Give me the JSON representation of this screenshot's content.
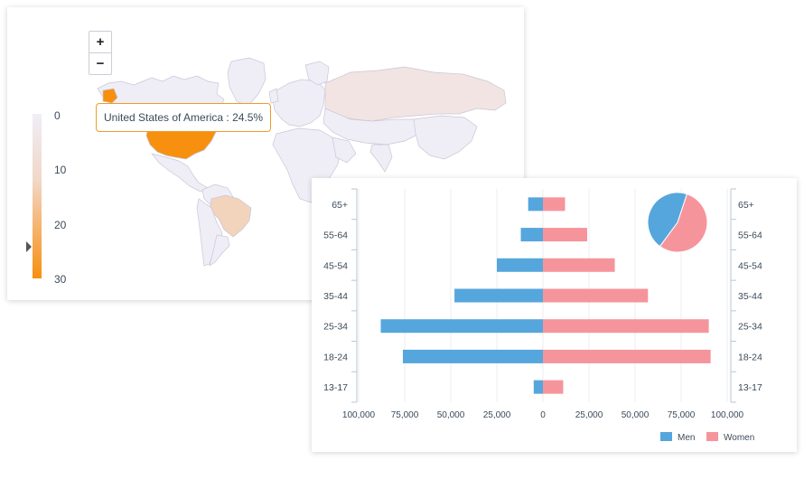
{
  "map": {
    "zoom_in_label": "+",
    "zoom_out_label": "−",
    "legend_ticks": [
      "0",
      "10",
      "20",
      "30"
    ],
    "tooltip": "United States of America : 24.5%",
    "colors": {
      "usa": "#f7900f",
      "brazil": "#f2d3bb",
      "russia": "#f2e4e2",
      "default_land": "#efeef7",
      "border": "#c9c6d6"
    }
  },
  "chart_data": {
    "type": "bar",
    "orientation": "horizontal",
    "categories": [
      "65+",
      "55-64",
      "45-54",
      "35-44",
      "25-34",
      "18-24",
      "13-17"
    ],
    "series": [
      {
        "name": "Men",
        "values": [
          -8000,
          -12000,
          -25000,
          -48000,
          -88000,
          -76000,
          -5000
        ],
        "color": "#55a6dc"
      },
      {
        "name": "Women",
        "values": [
          12000,
          24000,
          39000,
          57000,
          90000,
          91000,
          11000
        ],
        "color": "#f5959b"
      }
    ],
    "x_ticks": [
      "100,000",
      "75,000",
      "50,000",
      "25,000",
      "0",
      "25,000",
      "50,000",
      "75,000",
      "100,000"
    ],
    "xlim": [
      -100000,
      100000
    ],
    "legend": "bottom-right",
    "grid": true,
    "pie": {
      "type": "pie",
      "values": [
        45,
        55
      ],
      "labels": [
        "Men",
        "Women"
      ]
    }
  }
}
